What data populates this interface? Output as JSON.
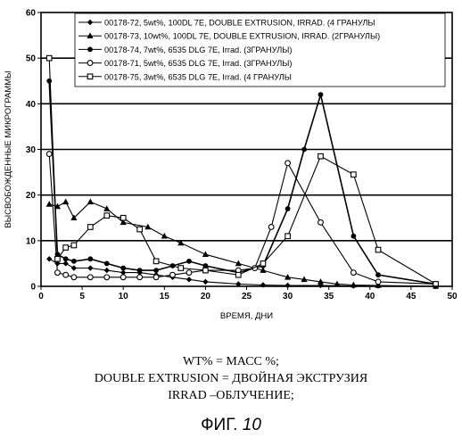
{
  "chart_data": {
    "type": "line",
    "xlabel": "ВРЕМЯ, ДНИ",
    "ylabel": "ВЫСВОБОЖДЕННЫЕ МИКРОГРАММЫ",
    "xlim": [
      0,
      50
    ],
    "ylim": [
      0,
      60
    ],
    "xticks": [
      0,
      5,
      10,
      15,
      20,
      25,
      30,
      35,
      40,
      45,
      50
    ],
    "yticks": [
      0,
      10,
      20,
      30,
      40,
      50,
      60
    ],
    "y_gridlines": [
      10,
      20,
      30,
      40,
      50
    ],
    "legend_position": "top-right",
    "series": [
      {
        "name": "00178-72, 5wt%, 100DL 7E, DOUBLE EXTRUSION, IRRAD. (4 ГРАНУЛЫ",
        "marker": "diamond-filled",
        "x": [
          1,
          2,
          3,
          4,
          6,
          8,
          10,
          12,
          14,
          16,
          18,
          20,
          24,
          27,
          30,
          34,
          38,
          41,
          48
        ],
        "y": [
          6,
          5,
          5,
          4,
          4,
          3.5,
          3,
          3,
          2.5,
          2,
          1.5,
          1,
          0.5,
          0.3,
          0.2,
          0.2,
          0.1,
          0.1,
          0
        ]
      },
      {
        "name": "00178-73, 10wt%, 100DL 7E, DOUBLE EXTRUSION, IRRAD. (2ГРАНУЛЫ)",
        "marker": "triangle-filled",
        "x": [
          1,
          2,
          3,
          4,
          6,
          8,
          10,
          13,
          15,
          17,
          20,
          24,
          27,
          30,
          32,
          34,
          36,
          38,
          41,
          48
        ],
        "y": [
          18,
          17.5,
          18.5,
          15,
          18.5,
          17,
          14,
          13,
          11,
          9.5,
          7,
          5,
          3.5,
          2,
          1.5,
          1,
          0.5,
          0.3,
          0.2,
          0
        ]
      },
      {
        "name": "00178-74, 7wt%, 6535 DLG 7E, Irrad. (3ГРАНУЛЫ)",
        "marker": "circle-filled",
        "x": [
          1,
          2,
          3,
          4,
          6,
          8,
          10,
          12,
          14,
          16,
          18,
          20,
          24,
          27,
          30,
          32,
          34,
          38,
          41,
          48
        ],
        "y": [
          45,
          7,
          6,
          5.5,
          6,
          5,
          4,
          3.5,
          3.5,
          4.5,
          5.5,
          4.5,
          3,
          4.5,
          17,
          30,
          42,
          11,
          2.5,
          0.5
        ]
      },
      {
        "name": "00178-71, 5wt%, 6535 DLG 7E, Irrad. (3ГРАНУЛЫ)",
        "marker": "circle-open",
        "x": [
          1,
          2,
          3,
          4,
          6,
          8,
          10,
          12,
          14,
          16,
          18,
          20,
          24,
          26,
          28,
          30,
          34,
          38,
          41,
          48
        ],
        "y": [
          29,
          3,
          2.5,
          2,
          2,
          2,
          2,
          2,
          2,
          2.5,
          3,
          3.5,
          3.5,
          4,
          13,
          27,
          14,
          3,
          1,
          0.5
        ]
      },
      {
        "name": "00178-75, 3wt%, 6535 DLG 7E, Irrad. (4 ГРАНУЛЫ",
        "marker": "square-open",
        "x": [
          1,
          2,
          3,
          4,
          6,
          8,
          10,
          12,
          14,
          17,
          20,
          24,
          27,
          30,
          34,
          38,
          41,
          48
        ],
        "y": [
          50,
          6,
          8.5,
          9,
          13,
          15.5,
          15,
          12.5,
          5.5,
          4,
          3.5,
          2.5,
          5,
          11,
          28.5,
          24.5,
          8,
          0.5
        ]
      }
    ]
  },
  "captions": {
    "line1": "WT% = МАСС %;",
    "line2": "DOUBLE EXTRUSION = ДВОЙНАЯ ЭКСТРУЗИЯ",
    "line3": "IRRAD –ОБЛУЧЕНИЕ;"
  },
  "figure": {
    "prefix": "ФИГ. ",
    "number": "10"
  }
}
